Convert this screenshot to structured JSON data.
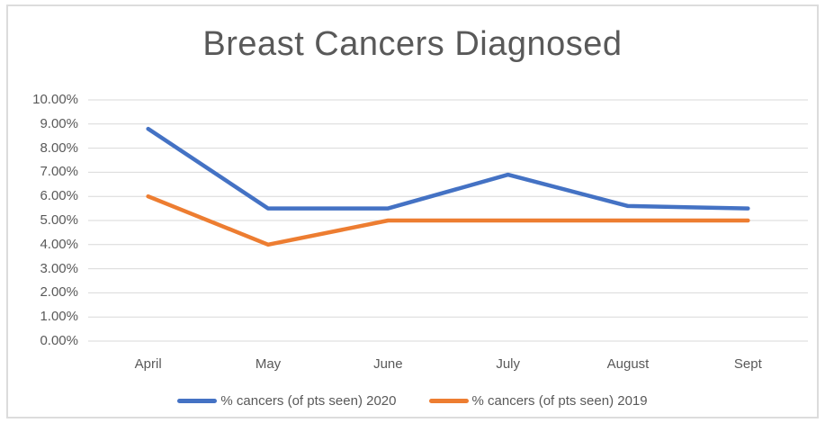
{
  "chart_data": {
    "type": "line",
    "title": "Breast Cancers Diagnosed",
    "categories": [
      "April",
      "May",
      "June",
      "July",
      "August",
      "Sept"
    ],
    "series": [
      {
        "name": "% cancers (of pts seen) 2020",
        "color": "#4472C4",
        "values": [
          8.8,
          5.5,
          5.5,
          6.9,
          5.6,
          5.5
        ]
      },
      {
        "name": "% cancers (of pts seen) 2019",
        "color": "#ED7D31",
        "values": [
          6.0,
          4.0,
          5.0,
          5.0,
          5.0,
          5.0
        ]
      }
    ],
    "xlabel": "",
    "ylabel": "",
    "ylim": [
      0,
      10
    ],
    "ytick_step": 1,
    "ytick_labels": [
      "0.00%",
      "1.00%",
      "2.00%",
      "3.00%",
      "4.00%",
      "5.00%",
      "6.00%",
      "7.00%",
      "8.00%",
      "9.00%",
      "10.00%"
    ],
    "grid": true,
    "gridline_color": "#D9D9D9",
    "legend_position": "bottom",
    "title_color": "#595959",
    "axis_label_color": "#595959"
  }
}
